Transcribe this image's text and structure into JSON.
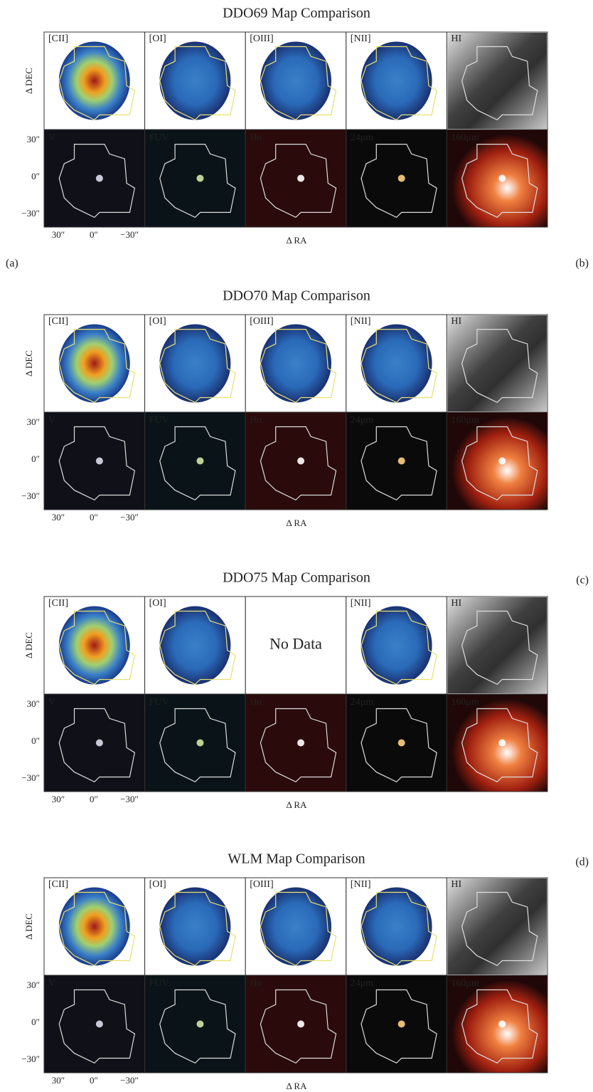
{
  "figures": [
    {
      "title": "DDO69 Map Comparison",
      "top_panels": [
        {
          "label": "[CII]"
        },
        {
          "label": "[OI]"
        },
        {
          "label": "[OIII]"
        },
        {
          "label": "[NII]"
        },
        {
          "label": "HI"
        }
      ],
      "bottom_panels": [
        "V",
        "FUV",
        "Hα",
        "24μm",
        "160μm"
      ],
      "y_label": "Δ DEC",
      "x_label": "Δ RA",
      "y_ticks": [
        "30″",
        "0″",
        "−30″"
      ],
      "x_ticks": [
        "30″",
        "0″",
        "−30″"
      ],
      "left_tag": "(a)",
      "right_tag": "(b)"
    },
    {
      "title": "DDO70 Map Comparison",
      "top_panels": [
        {
          "label": "[CII]"
        },
        {
          "label": "[OI]"
        },
        {
          "label": "[OIII]"
        },
        {
          "label": "[NII]"
        },
        {
          "label": "HI"
        }
      ],
      "bottom_panels": [
        "V",
        "FUV",
        "Hα",
        "24μm",
        "160μm"
      ],
      "y_label": "Δ DEC",
      "x_label": "Δ RA",
      "y_ticks": [
        "30″",
        "0″",
        "−30″"
      ],
      "x_ticks": [
        "30″",
        "0″",
        "−30″"
      ],
      "right_tag": "(c)"
    },
    {
      "title": "DDO75 Map Comparison",
      "top_panels": [
        {
          "label": "[CII]"
        },
        {
          "label": "[OI]"
        },
        {
          "text": "No Data"
        },
        {
          "label": "[NII]"
        },
        {
          "label": "HI"
        }
      ],
      "bottom_panels": [
        "V",
        "FUV",
        "Hα",
        "24μm",
        "160μm"
      ],
      "y_label": "Δ DEC",
      "x_label": "Δ RA",
      "y_ticks": [
        "30″",
        "0″",
        "−30″"
      ],
      "x_ticks": [
        "30″",
        "0″",
        "−30″"
      ],
      "right_tag": "(d)"
    },
    {
      "title": "WLM Map Comparison",
      "top_panels": [
        {
          "label": "[CII]"
        },
        {
          "label": "[OI]"
        },
        {
          "label": "[OIII]"
        },
        {
          "label": "[NII]"
        },
        {
          "label": "HI"
        }
      ],
      "bottom_panels": [
        "V",
        "FUV",
        "Hα",
        "24μm",
        "160μm"
      ],
      "y_label": "Δ DEC",
      "x_label": "Δ RA",
      "y_ticks": [
        "30″",
        "0″",
        "−30″"
      ],
      "x_ticks": [
        "30″",
        "0″",
        "−30″"
      ]
    }
  ]
}
